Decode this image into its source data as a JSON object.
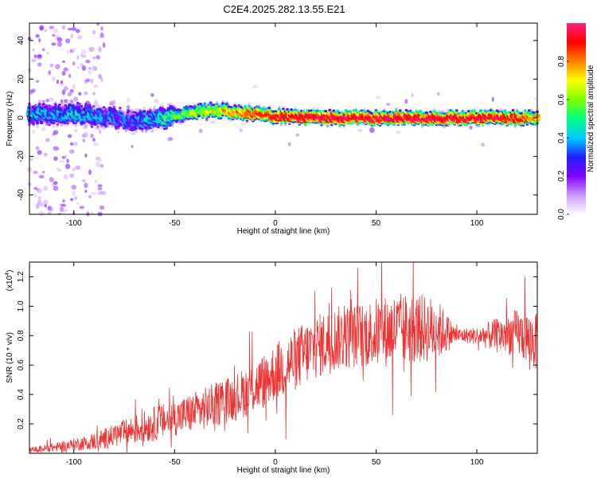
{
  "figure": {
    "title": "C2E4.2025.282.13.55.E21"
  },
  "chart_data": [
    {
      "type": "heatmap",
      "title": "C2E4.2025.282.13.55.E21",
      "xlabel": "Height of straight line (km)",
      "ylabel": "Frequency (Hz)",
      "xlim": [
        -122,
        130
      ],
      "ylim": [
        -50,
        49
      ],
      "xticks": [
        -100,
        -50,
        0,
        50,
        100
      ],
      "xtick_labels": [
        "-100",
        "-50",
        "0",
        "50",
        "100"
      ],
      "yticks": [
        -40,
        -20,
        0,
        20,
        40
      ],
      "ytick_labels": [
        "-40",
        "-20",
        "0",
        "20",
        "40"
      ],
      "grid": false,
      "colorbar": {
        "label": "Normalized spectral amplitude",
        "range": [
          0,
          1
        ],
        "ticks": [
          0.0,
          0.2,
          0.4,
          0.6,
          0.8
        ],
        "tick_labels": [
          "0.0",
          "0.2",
          "0.4",
          "0.6",
          "0.8"
        ],
        "colormap": [
          "#ffffff",
          "#cc99ff",
          "#8000ff",
          "#2020ff",
          "#00ccff",
          "#00ff80",
          "#80ff00",
          "#ffff00",
          "#ff8000",
          "#ff0000",
          "#ff2080"
        ]
      },
      "ridge": {
        "description_points_x": [
          -110,
          -100,
          -90,
          -80,
          -70,
          -60,
          -50,
          -40,
          -30,
          -20,
          -10,
          0,
          20,
          40,
          60,
          80,
          100,
          120,
          130
        ],
        "center_freq": [
          2,
          2,
          1,
          0,
          -2,
          -1,
          1,
          3,
          4,
          3,
          2,
          1,
          0,
          0,
          0,
          0,
          0,
          0,
          0
        ],
        "peak_amplitude": [
          0.35,
          0.4,
          0.35,
          0.3,
          0.3,
          0.4,
          0.5,
          0.6,
          0.65,
          0.75,
          0.8,
          0.85,
          0.9,
          0.9,
          0.9,
          0.9,
          0.9,
          0.85,
          0.7
        ]
      }
    },
    {
      "type": "line",
      "xlabel": "Height of straight line (km)",
      "ylabel": "SNR (10 * v/v)",
      "y_multiplier": "(x10",
      "y_multiplier_exp": "4",
      "y_multiplier_close": ")",
      "xlim": [
        -122,
        130
      ],
      "ylim": [
        0,
        1.3
      ],
      "xticks": [
        -100,
        -50,
        0,
        50,
        100
      ],
      "xtick_labels": [
        "-100",
        "-50",
        "0",
        "50",
        "100"
      ],
      "yticks": [
        0.2,
        0.4,
        0.6,
        0.8,
        1.0,
        1.2
      ],
      "ytick_labels": [
        "0.2",
        "0.4",
        "0.6",
        "0.8",
        "1.0",
        "1.2"
      ],
      "grid": false,
      "series": [
        {
          "color": "#ee3333",
          "envelope_x": [
            -122,
            -110,
            -100,
            -90,
            -80,
            -70,
            -60,
            -50,
            -40,
            -30,
            -20,
            -10,
            0,
            10,
            20,
            30,
            40,
            50,
            60,
            70,
            80,
            90,
            100,
            110,
            120,
            130
          ],
          "envelope_y": [
            0.02,
            0.04,
            0.06,
            0.08,
            0.12,
            0.16,
            0.2,
            0.24,
            0.28,
            0.33,
            0.38,
            0.45,
            0.55,
            0.64,
            0.72,
            0.78,
            0.8,
            0.82,
            0.84,
            0.85,
            0.84,
            0.8,
            0.8,
            0.8,
            0.82,
            0.75
          ],
          "noise_amplitude": [
            0.02,
            0.03,
            0.04,
            0.06,
            0.08,
            0.1,
            0.12,
            0.12,
            0.14,
            0.15,
            0.16,
            0.18,
            0.2,
            0.22,
            0.22,
            0.22,
            0.22,
            0.24,
            0.25,
            0.24,
            0.22,
            0.05,
            0.06,
            0.12,
            0.16,
            0.2
          ]
        }
      ]
    }
  ]
}
